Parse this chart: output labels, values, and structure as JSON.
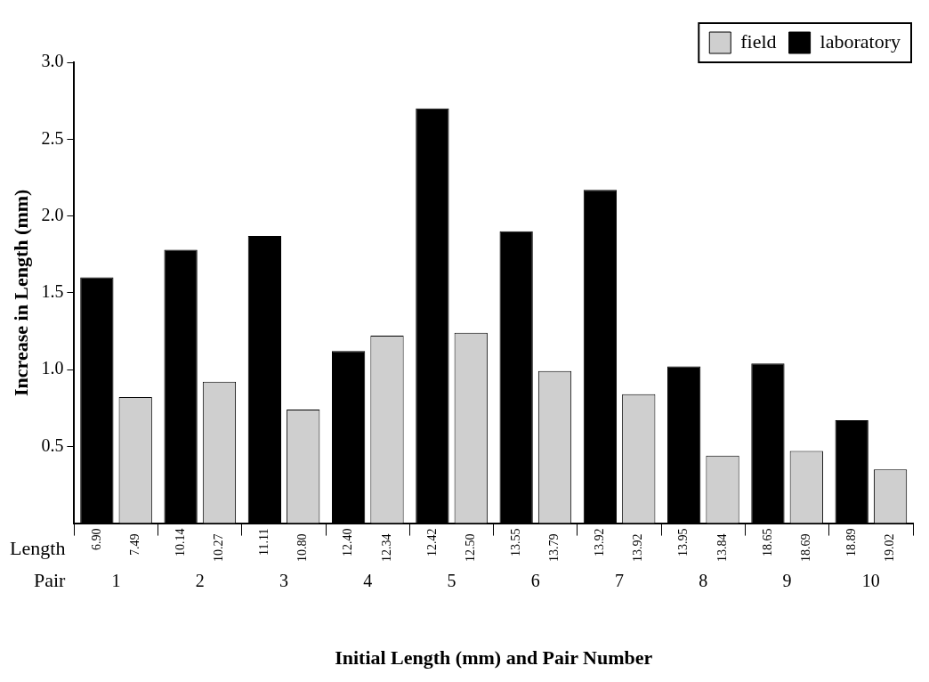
{
  "chart_data": {
    "type": "bar",
    "xlabel": "Initial Length (mm) and Pair Number",
    "ylabel": "Increase in Length (mm)",
    "categories": [
      "1",
      "2",
      "3",
      "4",
      "5",
      "6",
      "7",
      "8",
      "9",
      "10"
    ],
    "series": [
      {
        "name": "laboratory",
        "color": "#000000",
        "values": [
          1.6,
          1.78,
          1.87,
          1.12,
          2.7,
          1.9,
          2.17,
          1.02,
          1.04,
          0.67
        ]
      },
      {
        "name": "field",
        "color": "#cfcfcf",
        "values": [
          0.82,
          0.92,
          0.74,
          1.22,
          1.24,
          0.99,
          0.84,
          0.44,
          0.47,
          0.35
        ]
      }
    ],
    "ylim": [
      0,
      3
    ],
    "yticks": [
      0.5,
      {
        "value": 1,
        "label": "1.0"
      },
      1.5,
      {
        "value": 2,
        "label": "2.0"
      },
      2.5,
      {
        "value": 3,
        "label": "3.0"
      }
    ],
    "grid": false,
    "legend": "top right",
    "annotations": [
      "Length",
      "Pair",
      "6.90",
      "7.49",
      "10.14",
      "10.27",
      "11.11",
      "10.80",
      "12.40",
      "12.34",
      "12.42",
      "12.50",
      "13.55",
      "13.79",
      "13.92",
      "13.92",
      "13.95",
      "13.84",
      "18.65",
      "18.69",
      "18.89",
      "19.02"
    ]
  }
}
